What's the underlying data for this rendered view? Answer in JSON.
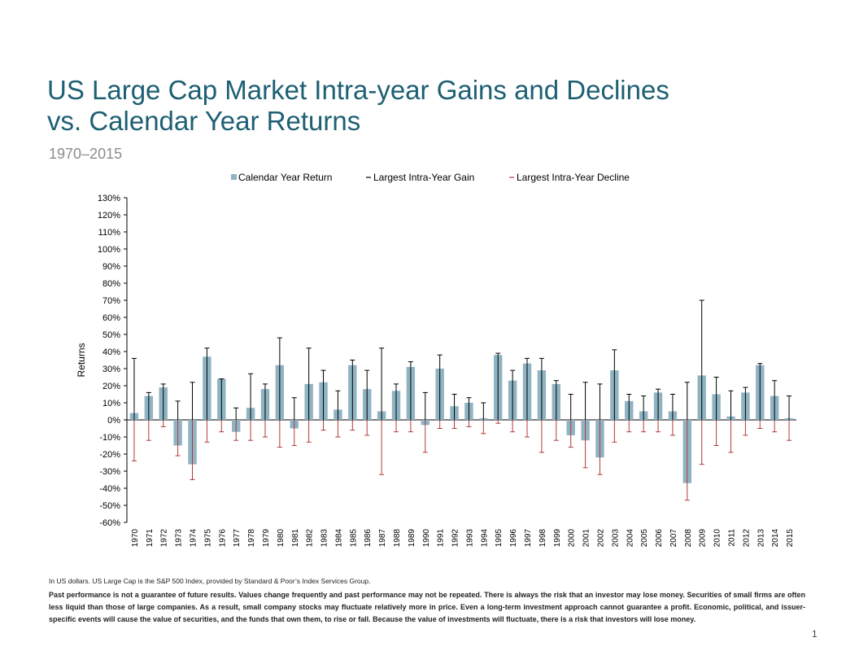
{
  "page": {
    "title_line1": "US Large Cap Market Intra-year Gains and Declines",
    "title_line2": "vs. Calendar Year Returns",
    "subtitle": "1970–2015",
    "footnote_source": "In US dollars. US Large Cap is the S&P 500 Index, provided by Standard & Poor’s Index Services Group.",
    "disclaimer": "Past performance is not a guarantee of future results. Values change frequently and past performance may not be repeated. There is always the risk that an investor may lose money. Securities of small firms are often less liquid than those of large companies. As a result, small company stocks may fluctuate relatively more in price. Even a long-term investment approach cannot guarantee a profit. Economic, political, and issuer-specific events will cause the value of securities, and the funds that own them, to rise or fall. Because the value of investments will fluctuate, there is a risk that investors will lose money.",
    "page_number": "1"
  },
  "chart_data": {
    "type": "bar",
    "ylabel": "Returns",
    "ylim": [
      -60,
      130
    ],
    "yticks": [
      -60,
      -50,
      -40,
      -30,
      -20,
      -10,
      0,
      10,
      20,
      30,
      40,
      50,
      60,
      70,
      80,
      90,
      100,
      110,
      120,
      130
    ],
    "ytick_format": "percent",
    "legend_position": "top",
    "categories": [
      "1970",
      "1971",
      "1972",
      "1973",
      "1974",
      "1975",
      "1976",
      "1977",
      "1978",
      "1979",
      "1980",
      "1981",
      "1982",
      "1983",
      "1984",
      "1985",
      "1986",
      "1987",
      "1988",
      "1989",
      "1990",
      "1991",
      "1992",
      "1993",
      "1994",
      "1995",
      "1996",
      "1997",
      "1998",
      "1999",
      "2000",
      "2001",
      "2002",
      "2003",
      "2004",
      "2005",
      "2006",
      "2007",
      "2008",
      "2009",
      "2010",
      "2011",
      "2012",
      "2013",
      "2014",
      "2015"
    ],
    "series": [
      {
        "name": "Calendar Year Return",
        "kind": "bar",
        "color": "#8eb3c2",
        "values": [
          4,
          14,
          19,
          -15,
          -26,
          37,
          24,
          -7,
          7,
          18,
          32,
          -5,
          21,
          22,
          6,
          32,
          18,
          5,
          17,
          31,
          -3,
          30,
          8,
          10,
          1,
          38,
          23,
          33,
          29,
          21,
          -9,
          -12,
          -22,
          29,
          11,
          5,
          16,
          5,
          -37,
          26,
          15,
          2,
          16,
          32,
          14,
          1
        ]
      },
      {
        "name": "Largest Intra-Year Gain",
        "kind": "error-up",
        "color": "#000000",
        "values": [
          36,
          16,
          21,
          11,
          22,
          42,
          24,
          7,
          27,
          21,
          48,
          13,
          42,
          29,
          17,
          35,
          29,
          42,
          21,
          34,
          16,
          38,
          15,
          13,
          10,
          39,
          29,
          36,
          36,
          23,
          15,
          22,
          21,
          41,
          15,
          14,
          18,
          15,
          22,
          70,
          25,
          17,
          19,
          33,
          23,
          14
        ]
      },
      {
        "name": "Largest Intra-Year Decline",
        "kind": "error-down",
        "color": "#b03a3a",
        "values": [
          -24,
          -12,
          -4,
          -21,
          -35,
          -13,
          -7,
          -12,
          -12,
          -10,
          -16,
          -15,
          -13,
          -6,
          -10,
          -6,
          -9,
          -32,
          -7,
          -7,
          -19,
          -5,
          -5,
          -4,
          -8,
          -2,
          -7,
          -10,
          -19,
          -12,
          -16,
          -28,
          -32,
          -13,
          -7,
          -7,
          -7,
          -9,
          -47,
          -26,
          -15,
          -19,
          -9,
          -5,
          -7,
          -12
        ]
      }
    ]
  }
}
